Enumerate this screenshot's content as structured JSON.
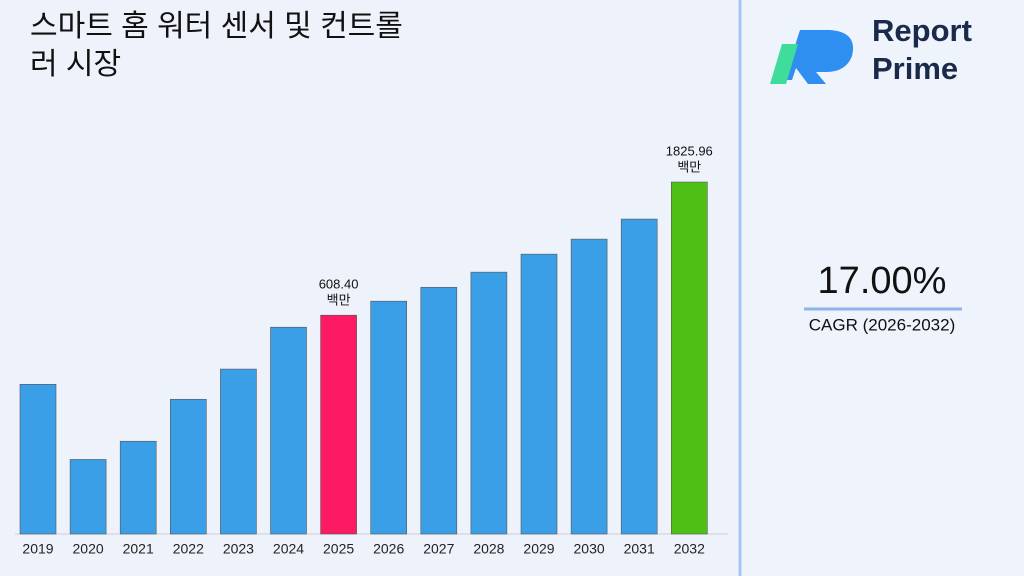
{
  "chart_data": {
    "type": "bar",
    "title": "스마트 홈 워터 센서 및 컨트롤러 시장",
    "categories": [
      "2019",
      "2020",
      "2021",
      "2022",
      "2023",
      "2024",
      "2025",
      "2026",
      "2027",
      "2028",
      "2029",
      "2030",
      "2031",
      "2032"
    ],
    "values": [
      344,
      185,
      215,
      304,
      390,
      551,
      608.4,
      683,
      766,
      868,
      1007,
      1140,
      1345,
      1825.96
    ],
    "value_labels": [
      null,
      null,
      null,
      null,
      null,
      null,
      "608.40",
      null,
      null,
      null,
      null,
      null,
      null,
      "1825.96"
    ],
    "unit": "백만",
    "colors": [
      "#3a9fe6",
      "#3a9fe6",
      "#3a9fe6",
      "#3a9fe6",
      "#3a9fe6",
      "#3a9fe6",
      "#fb1a63",
      "#3a9fe6",
      "#3a9fe6",
      "#3a9fe6",
      "#3a9fe6",
      "#3a9fe6",
      "#3a9fe6",
      "#4ec015"
    ],
    "log_scale": true,
    "ylim": [
      100,
      2000
    ]
  },
  "cagr": {
    "value": "17.00%",
    "label": "CAGR (2026-2032)"
  },
  "logo": {
    "line1": "Report",
    "line2": "Prime"
  }
}
